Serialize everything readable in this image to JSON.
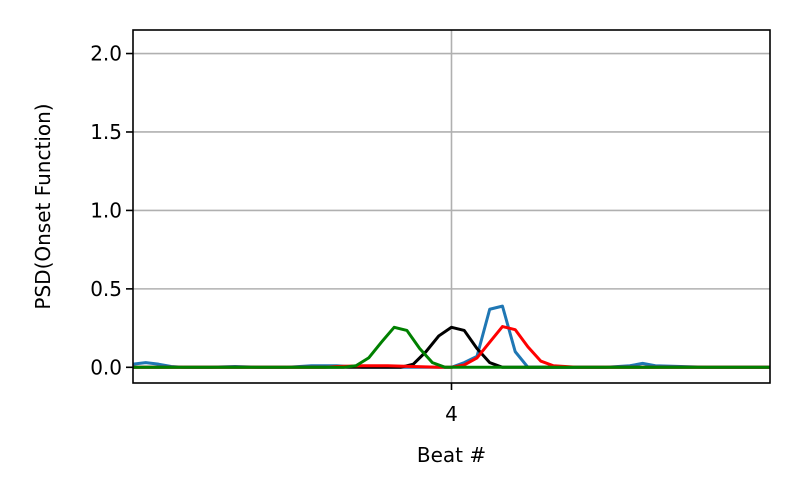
{
  "chart_data": {
    "type": "line",
    "title": "",
    "xlabel": "Beat #",
    "ylabel": "PSD(Onset Function)",
    "xlim": [
      0,
      100
    ],
    "ylim": [
      -0.1,
      2.15
    ],
    "x_ticks": [
      {
        "value": 50,
        "label": "4"
      }
    ],
    "y_ticks": [
      {
        "value": 0.0,
        "label": "0.0"
      },
      {
        "value": 0.5,
        "label": "0.5"
      },
      {
        "value": 1.0,
        "label": "1.0"
      },
      {
        "value": 1.5,
        "label": "1.5"
      },
      {
        "value": 2.0,
        "label": "2.0"
      }
    ],
    "grid": true,
    "series": [
      {
        "color": "#1f77b4",
        "points": [
          [
            0,
            0.02
          ],
          [
            2,
            0.03
          ],
          [
            4,
            0.02
          ],
          [
            6,
            0.005
          ],
          [
            8,
            0.0
          ],
          [
            12,
            0.0
          ],
          [
            16,
            0.005
          ],
          [
            20,
            0.0
          ],
          [
            24,
            0.0
          ],
          [
            28,
            0.01
          ],
          [
            32,
            0.01
          ],
          [
            36,
            0.0
          ],
          [
            40,
            0.0
          ],
          [
            44,
            0.0
          ],
          [
            48,
            0.0
          ],
          [
            50,
            0.0
          ],
          [
            52,
            0.03
          ],
          [
            54,
            0.07
          ],
          [
            56,
            0.37
          ],
          [
            58,
            0.39
          ],
          [
            60,
            0.1
          ],
          [
            62,
            0.0
          ],
          [
            66,
            0.0
          ],
          [
            70,
            0.0
          ],
          [
            74,
            0.0
          ],
          [
            78,
            0.01
          ],
          [
            80,
            0.025
          ],
          [
            82,
            0.01
          ],
          [
            86,
            0.005
          ],
          [
            90,
            0.0
          ],
          [
            94,
            0.0
          ],
          [
            100,
            0.0
          ]
        ]
      },
      {
        "color": "#000000",
        "points": [
          [
            0,
            0.0
          ],
          [
            20,
            0.0
          ],
          [
            40,
            0.0
          ],
          [
            42,
            0.0
          ],
          [
            44,
            0.02
          ],
          [
            46,
            0.1
          ],
          [
            48,
            0.2
          ],
          [
            50,
            0.255
          ],
          [
            52,
            0.235
          ],
          [
            54,
            0.12
          ],
          [
            56,
            0.03
          ],
          [
            58,
            0.0
          ],
          [
            62,
            0.0
          ],
          [
            80,
            0.0
          ],
          [
            100,
            0.0
          ]
        ]
      },
      {
        "color": "#ff0000",
        "points": [
          [
            0,
            0.0
          ],
          [
            20,
            0.0
          ],
          [
            30,
            0.0
          ],
          [
            32,
            0.005
          ],
          [
            36,
            0.01
          ],
          [
            40,
            0.01
          ],
          [
            44,
            0.005
          ],
          [
            48,
            0.0
          ],
          [
            50,
            0.0
          ],
          [
            52,
            0.015
          ],
          [
            54,
            0.06
          ],
          [
            56,
            0.16
          ],
          [
            58,
            0.26
          ],
          [
            60,
            0.24
          ],
          [
            62,
            0.13
          ],
          [
            64,
            0.04
          ],
          [
            66,
            0.01
          ],
          [
            70,
            0.0
          ],
          [
            80,
            0.0
          ],
          [
            100,
            0.0
          ]
        ]
      },
      {
        "color": "#008000",
        "points": [
          [
            0,
            0.0
          ],
          [
            20,
            0.0
          ],
          [
            30,
            0.0
          ],
          [
            33,
            0.0
          ],
          [
            35,
            0.01
          ],
          [
            37,
            0.06
          ],
          [
            39,
            0.16
          ],
          [
            41,
            0.255
          ],
          [
            43,
            0.235
          ],
          [
            45,
            0.12
          ],
          [
            47,
            0.03
          ],
          [
            49,
            0.0
          ],
          [
            52,
            0.0
          ],
          [
            60,
            0.0
          ],
          [
            80,
            0.0
          ],
          [
            100,
            0.0
          ]
        ]
      }
    ]
  }
}
